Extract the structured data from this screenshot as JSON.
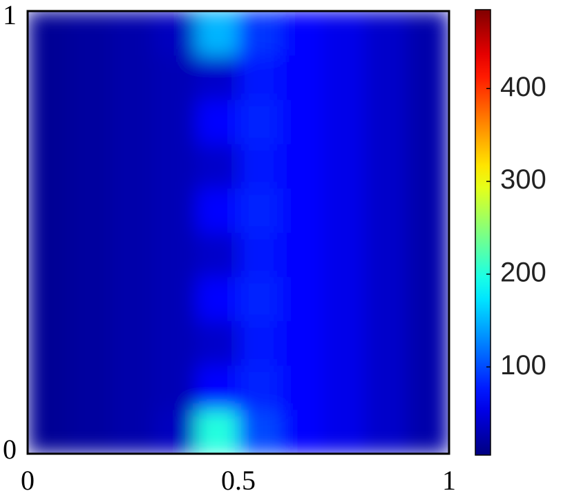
{
  "chart_data": {
    "type": "heatmap",
    "x": [
      0.05,
      0.15,
      0.25,
      0.35,
      0.45,
      0.55,
      0.65,
      0.75,
      0.85,
      0.95
    ],
    "y": [
      0.05,
      0.15,
      0.25,
      0.35,
      0.45,
      0.55,
      0.65,
      0.75,
      0.85,
      0.95
    ],
    "z": [
      [
        15,
        20,
        25,
        35,
        200,
        100,
        65,
        55,
        40,
        25
      ],
      [
        15,
        20,
        25,
        30,
        65,
        80,
        65,
        55,
        40,
        25
      ],
      [
        15,
        20,
        25,
        30,
        40,
        75,
        65,
        55,
        40,
        25
      ],
      [
        15,
        20,
        25,
        30,
        65,
        80,
        65,
        55,
        40,
        25
      ],
      [
        15,
        20,
        25,
        30,
        40,
        75,
        65,
        55,
        40,
        25
      ],
      [
        15,
        20,
        25,
        30,
        65,
        80,
        65,
        55,
        40,
        25
      ],
      [
        15,
        20,
        25,
        30,
        40,
        75,
        65,
        55,
        40,
        25
      ],
      [
        15,
        20,
        25,
        30,
        65,
        80,
        65,
        55,
        40,
        25
      ],
      [
        15,
        20,
        25,
        30,
        40,
        75,
        65,
        55,
        40,
        25
      ],
      [
        15,
        20,
        25,
        35,
        150,
        90,
        65,
        55,
        40,
        25
      ]
    ],
    "xlim": [
      0,
      1
    ],
    "xticks": [
      0,
      0.5,
      1
    ],
    "ylim": [
      0,
      1
    ],
    "yticks": [
      0,
      1
    ],
    "colormap": "jet",
    "clim": [
      5,
      485
    ],
    "cticks": [
      100,
      200,
      300,
      400
    ]
  }
}
